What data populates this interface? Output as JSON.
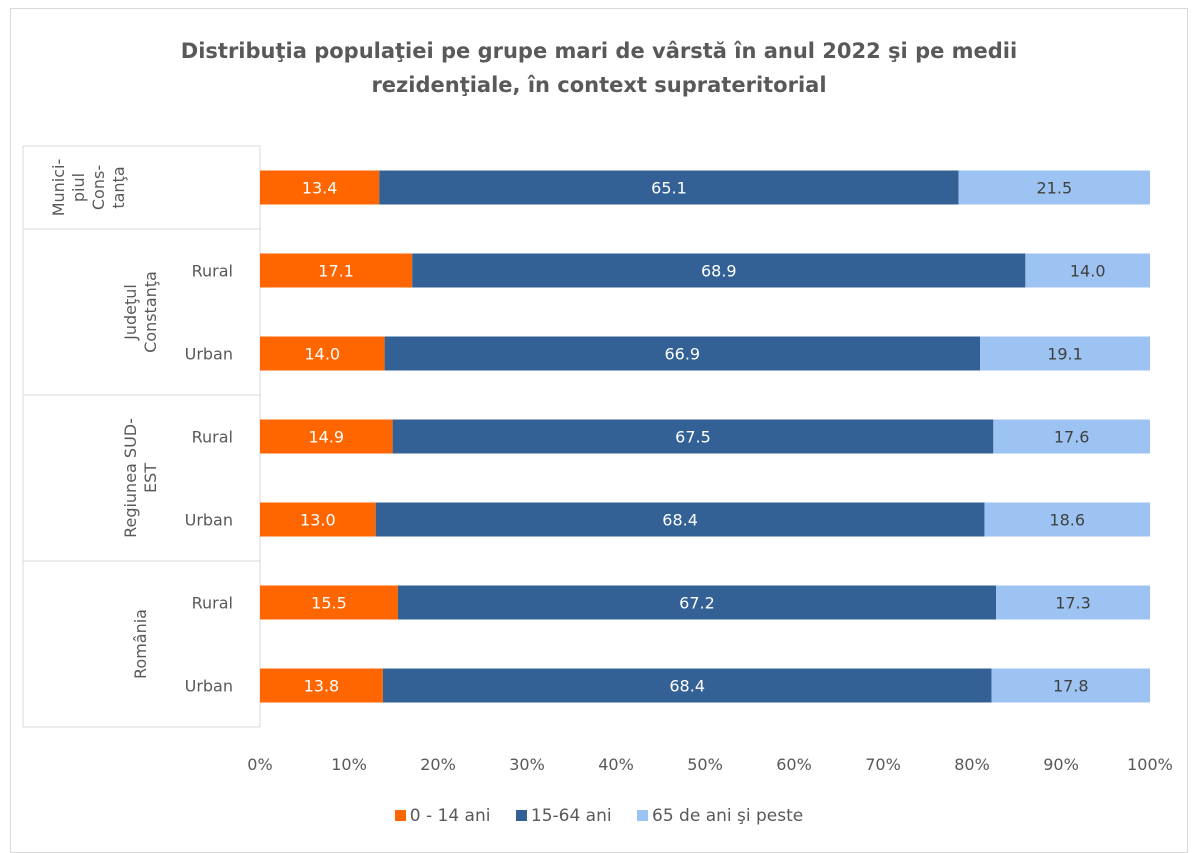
{
  "chart_data": {
    "type": "bar",
    "orientation": "horizontal",
    "stacked": "percent",
    "title_line1": "Distribuţia populaţiei pe grupe mari de vârstă în anul 2022 şi pe medii",
    "title_line2": "rezidenţiale, în context suprateritorial",
    "groups": [
      {
        "label": "Munici-piul Cons-tanţa",
        "lines": [
          "Munici-",
          "piul",
          "Cons-",
          "tanţa"
        ]
      },
      {
        "label": "Judeţul Constanţa",
        "lines": [
          "Judeţul",
          "Constanţa"
        ]
      },
      {
        "label": "Regiunea SUD-EST",
        "lines": [
          "Regiunea SUD-",
          "EST"
        ]
      },
      {
        "label": "România",
        "lines": [
          "România"
        ]
      }
    ],
    "categories": [
      {
        "group": 0,
        "label": ""
      },
      {
        "group": 1,
        "label": "Rural"
      },
      {
        "group": 1,
        "label": "Urban"
      },
      {
        "group": 2,
        "label": "Rural"
      },
      {
        "group": 2,
        "label": "Urban"
      },
      {
        "group": 3,
        "label": "Rural"
      },
      {
        "group": 3,
        "label": "Urban"
      }
    ],
    "series": [
      {
        "name": "0 - 14 ani",
        "color": "#ff6600",
        "label_color": "#ffffff",
        "values": [
          13.4,
          17.1,
          14.0,
          14.9,
          13.0,
          15.5,
          13.8
        ]
      },
      {
        "name": "15-64 ani",
        "color": "#336196",
        "label_color": "#ffffff",
        "values": [
          65.1,
          68.9,
          66.9,
          67.5,
          68.4,
          67.2,
          68.4
        ]
      },
      {
        "name": "65 de ani şi peste",
        "color": "#9dc3f2",
        "label_color": "#404040",
        "values": [
          21.5,
          14.0,
          19.1,
          17.6,
          18.6,
          17.3,
          17.8
        ]
      }
    ],
    "xlim": [
      0,
      100
    ],
    "x_ticks": [
      "0%",
      "10%",
      "20%",
      "30%",
      "40%",
      "50%",
      "60%",
      "70%",
      "80%",
      "90%",
      "100%"
    ],
    "grid": false,
    "legend_position": "bottom"
  }
}
